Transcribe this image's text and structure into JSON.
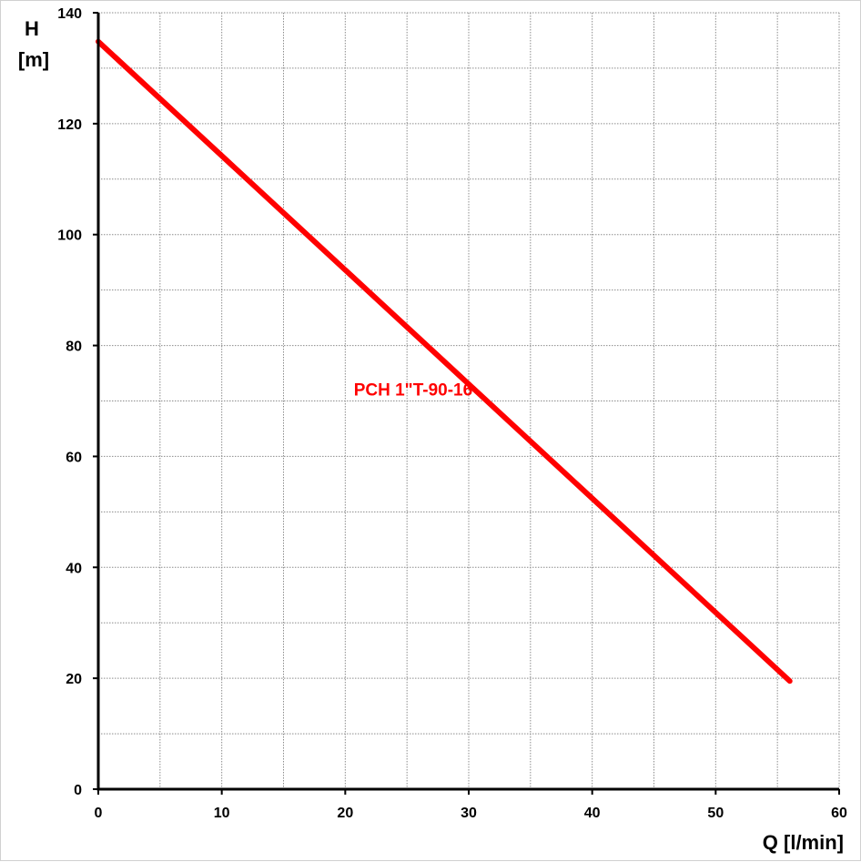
{
  "chart_data": {
    "type": "line",
    "title": "",
    "xlabel": "Q [l/min]",
    "ylabel_line1": "H",
    "ylabel_line2": "[m]",
    "xlim": [
      0,
      60
    ],
    "ylim": [
      0,
      140
    ],
    "x_ticks": [
      0,
      10,
      20,
      30,
      40,
      50,
      60
    ],
    "y_ticks": [
      0,
      20,
      40,
      60,
      80,
      100,
      120,
      140
    ],
    "x_minor_step": 5,
    "y_minor_step": 10,
    "grid": true,
    "series": [
      {
        "name": "PCH 1\"T-90-16",
        "color": "#ff0000",
        "x": [
          0,
          56
        ],
        "y": [
          134.8,
          19.5
        ],
        "label_anchor": {
          "x": 25.5,
          "y": 71
        }
      }
    ]
  }
}
